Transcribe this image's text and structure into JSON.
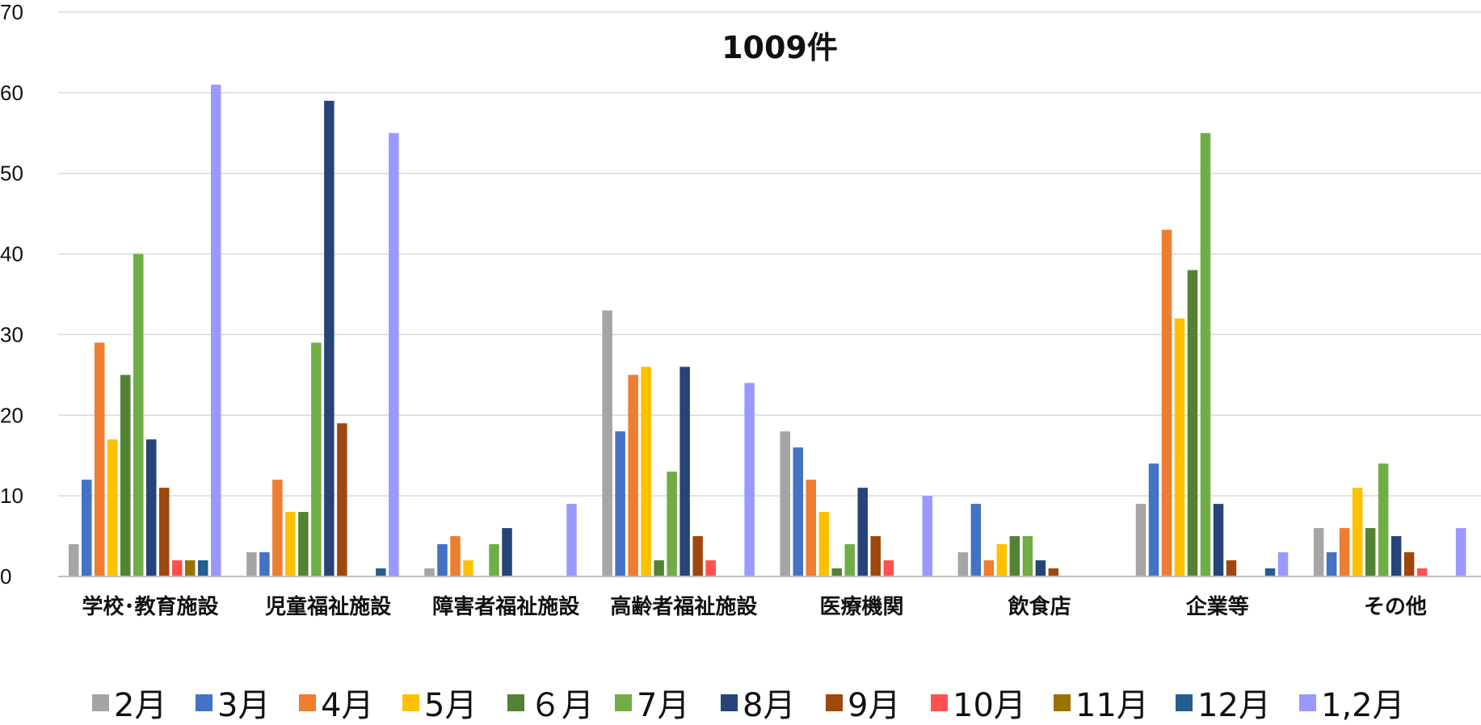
{
  "chart_data": {
    "type": "bar",
    "title": "1009件",
    "xlabel": "",
    "ylabel": "",
    "ylim": [
      0,
      70
    ],
    "yticks": [
      0,
      10,
      20,
      30,
      40,
      50,
      60,
      70
    ],
    "grid": true,
    "legend_position": "bottom",
    "categories": [
      "学校･教育施設",
      "児童福祉施設",
      "障害者福祉施設",
      "高齢者福祉施設",
      "医療機関",
      "飲食店",
      "企業等",
      "その他"
    ],
    "series": [
      {
        "name": "2月",
        "color": "#A5A5A5",
        "values": [
          4,
          3,
          1,
          33,
          18,
          3,
          9,
          6
        ]
      },
      {
        "name": "3月",
        "color": "#4472C4",
        "values": [
          12,
          3,
          4,
          18,
          16,
          9,
          14,
          3
        ]
      },
      {
        "name": "4月",
        "color": "#ED7D31",
        "values": [
          29,
          12,
          5,
          25,
          12,
          2,
          43,
          6
        ]
      },
      {
        "name": "5月",
        "color": "#FFC000",
        "values": [
          17,
          8,
          2,
          26,
          8,
          4,
          32,
          11
        ]
      },
      {
        "name": "６月",
        "color": "#548235",
        "values": [
          25,
          8,
          0,
          2,
          1,
          5,
          38,
          6
        ]
      },
      {
        "name": "7月",
        "color": "#70AD47",
        "values": [
          40,
          29,
          4,
          13,
          4,
          5,
          55,
          14
        ]
      },
      {
        "name": "8月",
        "color": "#264478",
        "values": [
          17,
          59,
          6,
          26,
          11,
          2,
          9,
          5
        ]
      },
      {
        "name": "9月",
        "color": "#9E480E",
        "values": [
          11,
          19,
          0,
          5,
          5,
          1,
          2,
          3
        ]
      },
      {
        "name": "10月",
        "color": "#FF5050",
        "values": [
          2,
          0,
          0,
          2,
          2,
          0,
          0,
          1
        ]
      },
      {
        "name": "11月",
        "color": "#997300",
        "values": [
          2,
          0,
          0,
          0,
          0,
          0,
          0,
          0
        ]
      },
      {
        "name": "12月",
        "color": "#255E91",
        "values": [
          2,
          1,
          0,
          0,
          0,
          0,
          1,
          0
        ]
      },
      {
        "name": "1,2月",
        "color": "#9999FF",
        "values": [
          61,
          55,
          9,
          24,
          10,
          0,
          3,
          6
        ]
      }
    ]
  }
}
